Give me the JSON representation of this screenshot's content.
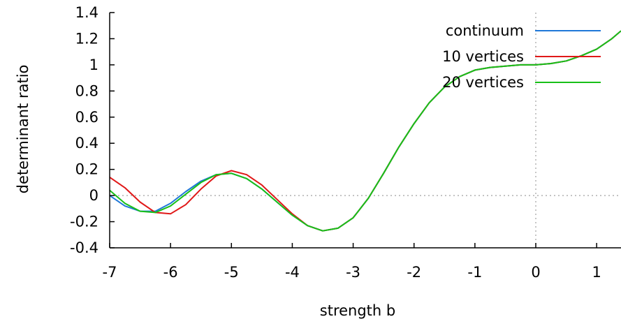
{
  "chart_data": {
    "type": "line",
    "title": "",
    "xlabel": "strength b",
    "ylabel": "determinant ratio",
    "xlim": [
      -7,
      1.4
    ],
    "ylim": [
      -0.4,
      1.4
    ],
    "x_ticks": [
      -7,
      -6,
      -5,
      -4,
      -3,
      -2,
      -1,
      0,
      1
    ],
    "x_tick_labels": [
      "-7",
      "-6",
      "-5",
      "-4",
      "-3",
      "-2",
      "-1",
      "0",
      "1"
    ],
    "y_ticks": [
      -0.4,
      -0.2,
      0,
      0.2,
      0.4,
      0.6,
      0.8,
      1,
      1.2,
      1.4
    ],
    "y_tick_labels": [
      "-0.4",
      "-0.2",
      "0",
      "0.2",
      "0.4",
      "0.6",
      "0.8",
      "1",
      "1.2",
      "1.4"
    ],
    "zero_lines": {
      "x": 0,
      "y": 0
    },
    "grid": false,
    "legend_position": "top-right",
    "series": [
      {
        "name": "continuum",
        "color": "#1f78d8",
        "x": [
          -7.0,
          -6.75,
          -6.5,
          -6.25,
          -6.0,
          -5.75,
          -5.5,
          -5.25,
          -5.0,
          -4.75,
          -4.5,
          -4.25,
          -4.0,
          -3.75,
          -3.5,
          -3.25,
          -3.0,
          -2.75,
          -2.5,
          -2.25,
          -2.0,
          -1.75,
          -1.5,
          -1.25,
          -1.0,
          -0.75,
          -0.5,
          -0.25,
          0.0,
          0.25,
          0.5,
          0.75,
          1.0,
          1.25,
          1.4
        ],
        "y": [
          0.0,
          -0.08,
          -0.12,
          -0.12,
          -0.06,
          0.03,
          0.11,
          0.16,
          0.17,
          0.13,
          0.05,
          -0.05,
          -0.15,
          -0.23,
          -0.27,
          -0.25,
          -0.17,
          -0.02,
          0.17,
          0.37,
          0.55,
          0.71,
          0.83,
          0.91,
          0.96,
          0.98,
          0.99,
          1.0,
          1.0,
          1.01,
          1.03,
          1.07,
          1.12,
          1.2,
          1.26
        ]
      },
      {
        "name": "10 vertices",
        "color": "#e01818",
        "x": [
          -7.0,
          -6.75,
          -6.5,
          -6.25,
          -6.0,
          -5.75,
          -5.5,
          -5.25,
          -5.0,
          -4.75,
          -4.5,
          -4.25,
          -4.0,
          -3.75,
          -3.5,
          -3.25,
          -3.0,
          -2.75,
          -2.5,
          -2.25,
          -2.0,
          -1.75,
          -1.5,
          -1.25,
          -1.0,
          -0.75,
          -0.5,
          -0.25,
          0.0,
          0.25,
          0.5,
          0.75,
          1.0,
          1.25,
          1.4
        ],
        "y": [
          0.14,
          0.06,
          -0.05,
          -0.13,
          -0.14,
          -0.07,
          0.05,
          0.15,
          0.19,
          0.16,
          0.08,
          -0.03,
          -0.14,
          -0.23,
          -0.27,
          -0.25,
          -0.17,
          -0.02,
          0.17,
          0.37,
          0.55,
          0.71,
          0.83,
          0.91,
          0.96,
          0.98,
          0.99,
          1.0,
          1.0,
          1.01,
          1.03,
          1.07,
          1.12,
          1.2,
          1.26
        ]
      },
      {
        "name": "20 vertices",
        "color": "#18c018",
        "x": [
          -7.0,
          -6.75,
          -6.5,
          -6.25,
          -6.0,
          -5.75,
          -5.5,
          -5.25,
          -5.0,
          -4.75,
          -4.5,
          -4.25,
          -4.0,
          -3.75,
          -3.5,
          -3.25,
          -3.0,
          -2.75,
          -2.5,
          -2.25,
          -2.0,
          -1.75,
          -1.5,
          -1.25,
          -1.0,
          -0.75,
          -0.5,
          -0.25,
          0.0,
          0.25,
          0.5,
          0.75,
          1.0,
          1.25,
          1.4
        ],
        "y": [
          0.04,
          -0.06,
          -0.12,
          -0.13,
          -0.08,
          0.01,
          0.1,
          0.16,
          0.17,
          0.13,
          0.05,
          -0.05,
          -0.15,
          -0.23,
          -0.27,
          -0.25,
          -0.17,
          -0.02,
          0.17,
          0.37,
          0.55,
          0.71,
          0.83,
          0.91,
          0.96,
          0.98,
          0.99,
          1.0,
          1.0,
          1.01,
          1.03,
          1.07,
          1.12,
          1.2,
          1.26
        ]
      }
    ]
  }
}
